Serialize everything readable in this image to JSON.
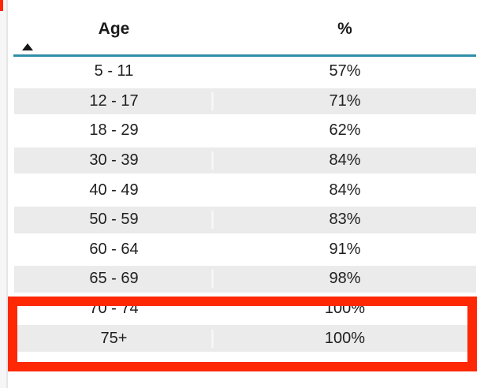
{
  "table": {
    "header": {
      "age_label": "Age",
      "pct_label": "%"
    },
    "sort": {
      "column": "Age",
      "direction": "ascending",
      "icon": "sort-ascending-icon"
    },
    "rows": [
      {
        "age": "5 - 11",
        "pct": "57%"
      },
      {
        "age": "12 - 17",
        "pct": "71%"
      },
      {
        "age": "18 - 29",
        "pct": "62%"
      },
      {
        "age": "30 - 39",
        "pct": "84%"
      },
      {
        "age": "40 - 49",
        "pct": "84%"
      },
      {
        "age": "50 - 59",
        "pct": "83%"
      },
      {
        "age": "60 - 64",
        "pct": "91%"
      },
      {
        "age": "65 - 69",
        "pct": "98%"
      },
      {
        "age": "70 - 74",
        "pct": "100%"
      },
      {
        "age": "75+",
        "pct": "100%"
      }
    ],
    "highlighted_rows": [
      "70 - 74",
      "75+"
    ]
  },
  "colors": {
    "header_underline": "#2f8fa8",
    "row_stripe": "#ebebeb",
    "text": "#1f1f1f",
    "highlight": "#fe2805"
  }
}
